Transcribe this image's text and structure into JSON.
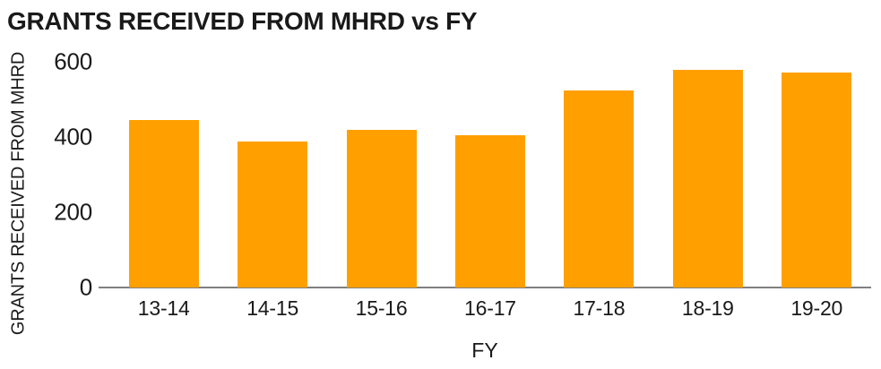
{
  "chart_data": {
    "type": "bar",
    "title": "GRANTS RECEIVED FROM MHRD vs FY",
    "xlabel": "FY",
    "ylabel": "GRANTS RECEIVED FROM MHRD",
    "categories": [
      "13-14",
      "14-15",
      "15-16",
      "16-17",
      "17-18",
      "18-19",
      "19-20"
    ],
    "values": [
      446,
      387,
      420,
      405,
      523,
      578,
      572
    ],
    "yticks": [
      0,
      200,
      400,
      600
    ],
    "ylim": [
      0,
      600
    ],
    "grid": false,
    "legend": "none",
    "bar_color": "#FFA000",
    "axis_line_color": "#808080",
    "text_color": "#1A1A1A",
    "background_color": "#FFFFFF"
  }
}
